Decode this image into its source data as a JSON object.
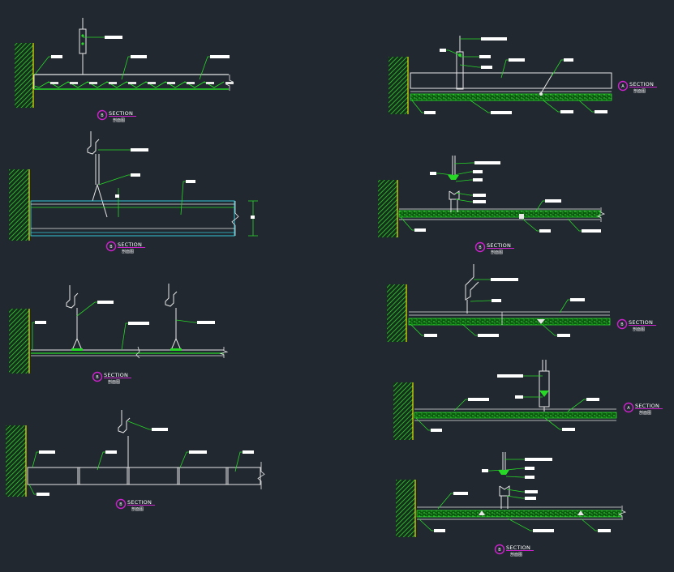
{
  "drawing": {
    "background": "#212830",
    "colors": {
      "outline": "#e6e6e6",
      "leader": "#27d827",
      "hatch": "#2fcc2f",
      "wall_edge": "#e4e400",
      "panel_fill": "#0e6e12",
      "symbol": "#cc22cc",
      "cyan": "#35c8d8",
      "label": "#ffffff"
    },
    "section_title": "SECTION",
    "section_subtitle": "剖面图",
    "section_letters": [
      "B",
      "B",
      "B",
      "B",
      "A",
      "B",
      "B",
      "A",
      "B"
    ]
  }
}
